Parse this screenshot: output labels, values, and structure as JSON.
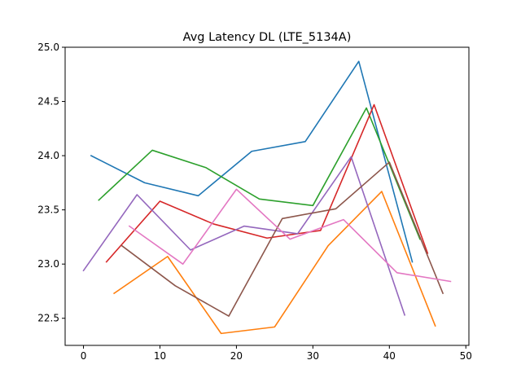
{
  "chart_data": {
    "type": "line",
    "title": "Avg Latency DL (LTE_5134A)",
    "xlabel": "",
    "ylabel": "",
    "xlim": [
      -2.4,
      50.4
    ],
    "ylim": [
      22.25,
      25.0
    ],
    "xticks": [
      0,
      10,
      20,
      30,
      40,
      50
    ],
    "xtick_labels": [
      "0",
      "10",
      "20",
      "30",
      "40",
      "50"
    ],
    "yticks": [
      22.5,
      23.0,
      23.5,
      24.0,
      24.5,
      25.0
    ],
    "ytick_labels": [
      "22.5",
      "23.0",
      "23.5",
      "24.0",
      "24.5",
      "25.0"
    ],
    "grid": false,
    "legend": "none",
    "series": [
      {
        "color": "#1f77b4",
        "x": [
          1,
          8,
          15,
          22,
          29,
          36,
          43
        ],
        "y": [
          24.0,
          23.75,
          23.63,
          24.04,
          24.13,
          24.87,
          23.02
        ]
      },
      {
        "color": "#ff7f0e",
        "x": [
          4,
          11,
          18,
          25,
          32,
          39,
          46
        ],
        "y": [
          22.73,
          23.07,
          22.36,
          22.42,
          23.17,
          23.67,
          22.43
        ]
      },
      {
        "color": "#2ca02c",
        "x": [
          2,
          9,
          16,
          23,
          30,
          37,
          44
        ],
        "y": [
          23.59,
          24.05,
          23.89,
          23.6,
          23.54,
          24.44,
          23.23
        ]
      },
      {
        "color": "#d62728",
        "x": [
          3,
          10,
          17,
          24,
          31,
          38,
          45
        ],
        "y": [
          23.02,
          23.58,
          23.37,
          23.24,
          23.31,
          24.47,
          23.1
        ]
      },
      {
        "color": "#9467bd",
        "x": [
          0,
          7,
          14,
          21,
          28,
          35,
          42
        ],
        "y": [
          22.94,
          23.64,
          23.13,
          23.35,
          23.28,
          23.99,
          22.53
        ]
      },
      {
        "color": "#8c564b",
        "x": [
          5,
          12,
          19,
          26,
          33,
          40,
          47
        ],
        "y": [
          23.17,
          22.8,
          22.52,
          23.42,
          23.51,
          23.94,
          22.73
        ]
      },
      {
        "color": "#e377c2",
        "x": [
          6,
          13,
          20,
          27,
          34,
          41,
          48
        ],
        "y": [
          23.35,
          23.0,
          23.69,
          23.23,
          23.41,
          22.92,
          22.84
        ]
      }
    ]
  }
}
